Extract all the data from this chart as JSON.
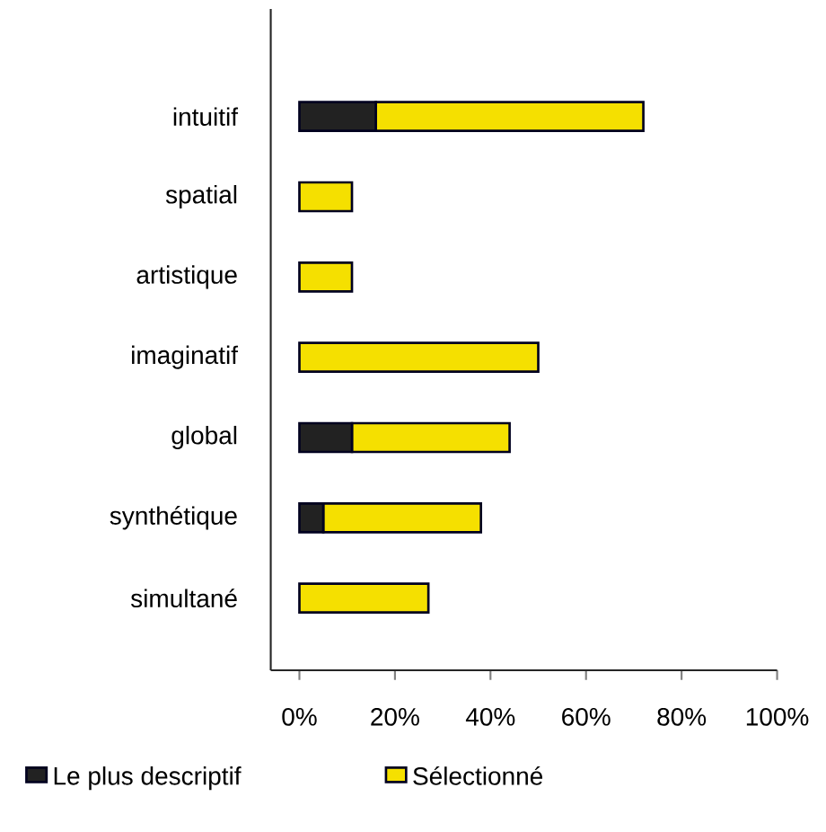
{
  "chart_data": {
    "type": "bar",
    "orientation": "horizontal",
    "stacked": true,
    "categories": [
      "intuitif",
      "spatial",
      "artistique",
      "imaginatif",
      "global",
      "synthétique",
      "simultané"
    ],
    "series": [
      {
        "name": "Le plus descriptif",
        "color": "#222222",
        "values": [
          16,
          0,
          0,
          0,
          11,
          5,
          0
        ]
      },
      {
        "name": "Sélectionné",
        "color": "#f5e000",
        "values": [
          56,
          11,
          11,
          50,
          33,
          33,
          27
        ]
      }
    ],
    "xlim": [
      -6,
      100
    ],
    "xticks": [
      {
        "value": 0,
        "label": "0%"
      },
      {
        "value": 20,
        "label": "20%"
      },
      {
        "value": 40,
        "label": "40%"
      },
      {
        "value": 60,
        "label": "60%"
      },
      {
        "value": 80,
        "label": "80%"
      },
      {
        "value": 100,
        "label": "100%"
      }
    ],
    "legend": "bottom"
  }
}
